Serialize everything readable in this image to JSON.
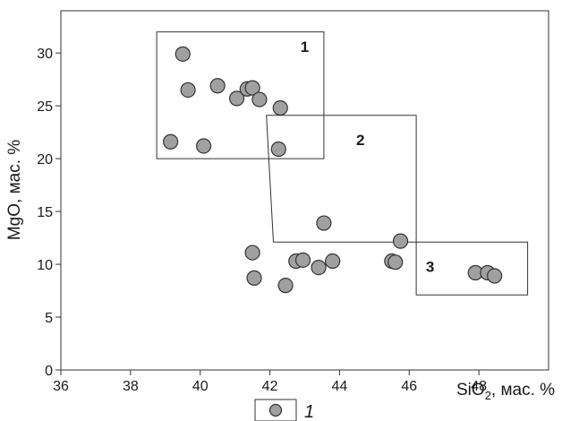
{
  "chart_data": {
    "type": "scatter",
    "xlabel_main": "SiO",
    "xlabel_sub": "2",
    "xlabel_unit": ", мас. %",
    "ylabel": "MgO, мас. %",
    "xlim": [
      36,
      50
    ],
    "ylim": [
      0,
      34
    ],
    "x_ticks": [
      36,
      38,
      40,
      42,
      44,
      46,
      48
    ],
    "y_ticks": [
      0,
      5,
      10,
      15,
      20,
      25,
      30
    ],
    "grid": false,
    "marker_color": "#a0a0a0",
    "marker_edge_color": "#333333",
    "series": [
      {
        "points": [
          {
            "x": 39.5,
            "y": 29.9
          },
          {
            "x": 39.65,
            "y": 26.5
          },
          {
            "x": 40.5,
            "y": 26.9
          },
          {
            "x": 41.05,
            "y": 25.7
          },
          {
            "x": 41.35,
            "y": 26.6
          },
          {
            "x": 41.5,
            "y": 26.7
          },
          {
            "x": 41.7,
            "y": 25.6
          },
          {
            "x": 42.3,
            "y": 24.8
          },
          {
            "x": 39.15,
            "y": 21.6
          },
          {
            "x": 40.1,
            "y": 21.2
          },
          {
            "x": 42.25,
            "y": 20.9
          },
          {
            "x": 43.55,
            "y": 13.9
          },
          {
            "x": 45.75,
            "y": 12.2
          },
          {
            "x": 41.5,
            "y": 11.1
          },
          {
            "x": 42.75,
            "y": 10.3
          },
          {
            "x": 42.95,
            "y": 10.4
          },
          {
            "x": 43.8,
            "y": 10.3
          },
          {
            "x": 43.4,
            "y": 9.7
          },
          {
            "x": 45.5,
            "y": 10.3
          },
          {
            "x": 45.6,
            "y": 10.2
          },
          {
            "x": 41.55,
            "y": 8.7
          },
          {
            "x": 42.45,
            "y": 8.0
          },
          {
            "x": 47.9,
            "y": 9.2
          },
          {
            "x": 48.25,
            "y": 9.2
          },
          {
            "x": 48.45,
            "y": 8.9
          }
        ]
      }
    ],
    "regions": [
      {
        "label": "1",
        "polygon": [
          [
            38.75,
            32.0
          ],
          [
            43.55,
            32.0
          ],
          [
            43.55,
            20.0
          ],
          [
            38.75,
            20.0
          ]
        ]
      },
      {
        "label": "2",
        "polygon": [
          [
            41.9,
            24.1
          ],
          [
            46.2,
            24.1
          ],
          [
            46.2,
            12.1
          ],
          [
            42.1,
            12.1
          ]
        ]
      },
      {
        "label": "3",
        "polygon": [
          [
            46.2,
            12.1
          ],
          [
            49.4,
            12.1
          ],
          [
            49.4,
            7.1
          ],
          [
            46.2,
            7.1
          ]
        ]
      }
    ],
    "region_label_positions": [
      {
        "label": "1",
        "x": 43.0,
        "y": 30.1
      },
      {
        "label": "2",
        "x": 44.6,
        "y": 21.3
      },
      {
        "label": "3",
        "x": 46.6,
        "y": 9.3
      }
    ],
    "legend": {
      "label": "1",
      "placement": "bottom-center"
    }
  }
}
